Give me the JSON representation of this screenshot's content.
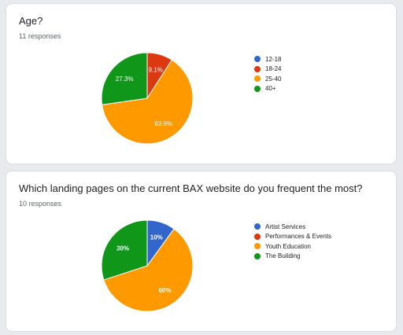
{
  "chart_data": [
    {
      "type": "pie",
      "title": "Age?",
      "subtitle": "11 responses",
      "categories": [
        "12-18",
        "18-24",
        "25-40",
        "40+"
      ],
      "values": [
        0,
        1,
        7,
        3
      ],
      "labels": [
        "",
        "9.1%",
        "63.6%",
        "27.3%"
      ],
      "colors": [
        "#3366cc",
        "#dc3912",
        "#ff9900",
        "#109618"
      ],
      "legend": "right",
      "bold_labels": false
    },
    {
      "type": "pie",
      "title": "Which landing pages on the current BAX website do you frequent the most?",
      "subtitle": "10 responses",
      "categories": [
        "Artist Services",
        "Performances & Events",
        "Youth Education",
        "The Building"
      ],
      "values": [
        1,
        0,
        6,
        3
      ],
      "labels": [
        "10%",
        "",
        "60%",
        "30%"
      ],
      "colors": [
        "#3366cc",
        "#dc3912",
        "#ff9900",
        "#109618"
      ],
      "legend": "right",
      "bold_labels": true
    }
  ]
}
